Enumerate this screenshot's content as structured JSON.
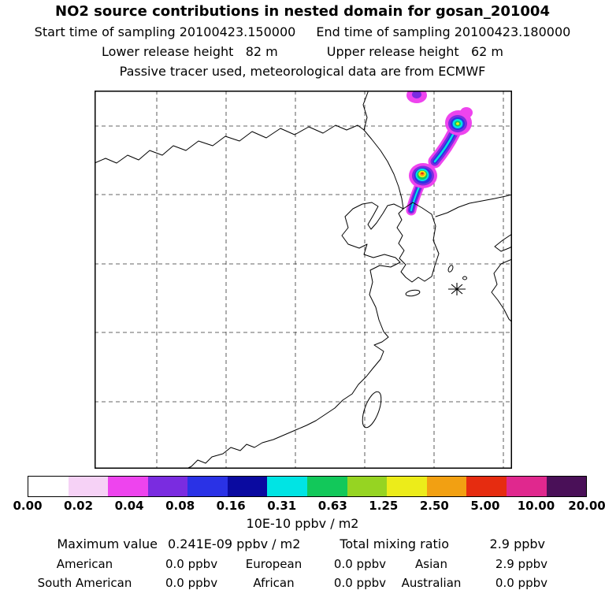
{
  "header": {
    "title": "NO2 source contributions in nested domain for gosan_201004",
    "start": "Start time of sampling 20100423.150000",
    "end": "End time of sampling 20100423.180000",
    "lower": "Lower release height   82 m",
    "upper": "Upper release height   62 m",
    "tracer": "Passive tracer used, meteorological data are from ECMWF"
  },
  "colorbar": {
    "levels": [
      "0.00",
      "0.02",
      "0.04",
      "0.08",
      "0.16",
      "0.31",
      "0.63",
      "1.25",
      "2.50",
      "5.00",
      "10.00",
      "20.00"
    ],
    "colors": [
      "#ffffff",
      "#f6d2f6",
      "#ee44ee",
      "#7a2ce0",
      "#2a32e6",
      "#0a0aa0",
      "#00e4e4",
      "#12c85a",
      "#96d422",
      "#ecec1a",
      "#f2a012",
      "#e62c10",
      "#e0288e",
      "#4a1058"
    ],
    "unit": "10E-10 ppbv / m2"
  },
  "stats": {
    "max_label": "Maximum value",
    "max_value": "0.241E-09 ppbv / m2",
    "total_label": "Total mixing ratio",
    "total_value": "2.9 ppbv",
    "regions": [
      {
        "name": "American",
        "value": "0.0 ppbv"
      },
      {
        "name": "European",
        "value": "0.0 ppbv"
      },
      {
        "name": "Asian",
        "value": "2.9 ppbv"
      },
      {
        "name": "South American",
        "value": "0.0 ppbv"
      },
      {
        "name": "African",
        "value": "0.0 ppbv"
      },
      {
        "name": "Australian",
        "value": "0.0 ppbv"
      }
    ]
  },
  "chart_data": {
    "type": "heatmap",
    "title": "NO2 source contributions in nested domain for gosan_201004",
    "start_time_of_sampling": "20100423.150000",
    "end_time_of_sampling": "20100423.180000",
    "lower_release_height_m": 82,
    "upper_release_height_m": 62,
    "tracer_note": "Passive tracer used, meteorological data are from ECMWF",
    "colorbar_levels": [
      0.0,
      0.02,
      0.04,
      0.08,
      0.16,
      0.31,
      0.63,
      1.25,
      2.5,
      5.0,
      10.0,
      20.0
    ],
    "colorbar_units": "10E-10 ppbv / m2",
    "colorbar_colors": [
      "#ffffff",
      "#f6d2f6",
      "#ee44ee",
      "#7a2ce0",
      "#2a32e6",
      "#0a0aa0",
      "#00e4e4",
      "#12c85a",
      "#96d422",
      "#ecec1a",
      "#f2a012",
      "#e62c10",
      "#e0288e",
      "#4a1058"
    ],
    "maximum_value": "0.241E-09 ppbv / m2",
    "total_mixing_ratio": "2.9 ppbv",
    "region_mixing_ratios_ppbv": {
      "American": 0.0,
      "European": 0.0,
      "Asian": 2.9,
      "South American": 0.0,
      "African": 0.0,
      "Australian": 0.0
    },
    "map_region": "East Asia (China, Korea, Japan, Taiwan) with dashed lat/lon grid",
    "plume_description": "Elongated NNE-SSW plume over northeast China / North Korea reaching the top of the domain; strongest cell (yellow-orange-red core) mid-plume, second maximum near the upper blob; receptor marked with an asterisk southeast of the Korean peninsula (Gosan)",
    "legend_position": "bottom"
  }
}
